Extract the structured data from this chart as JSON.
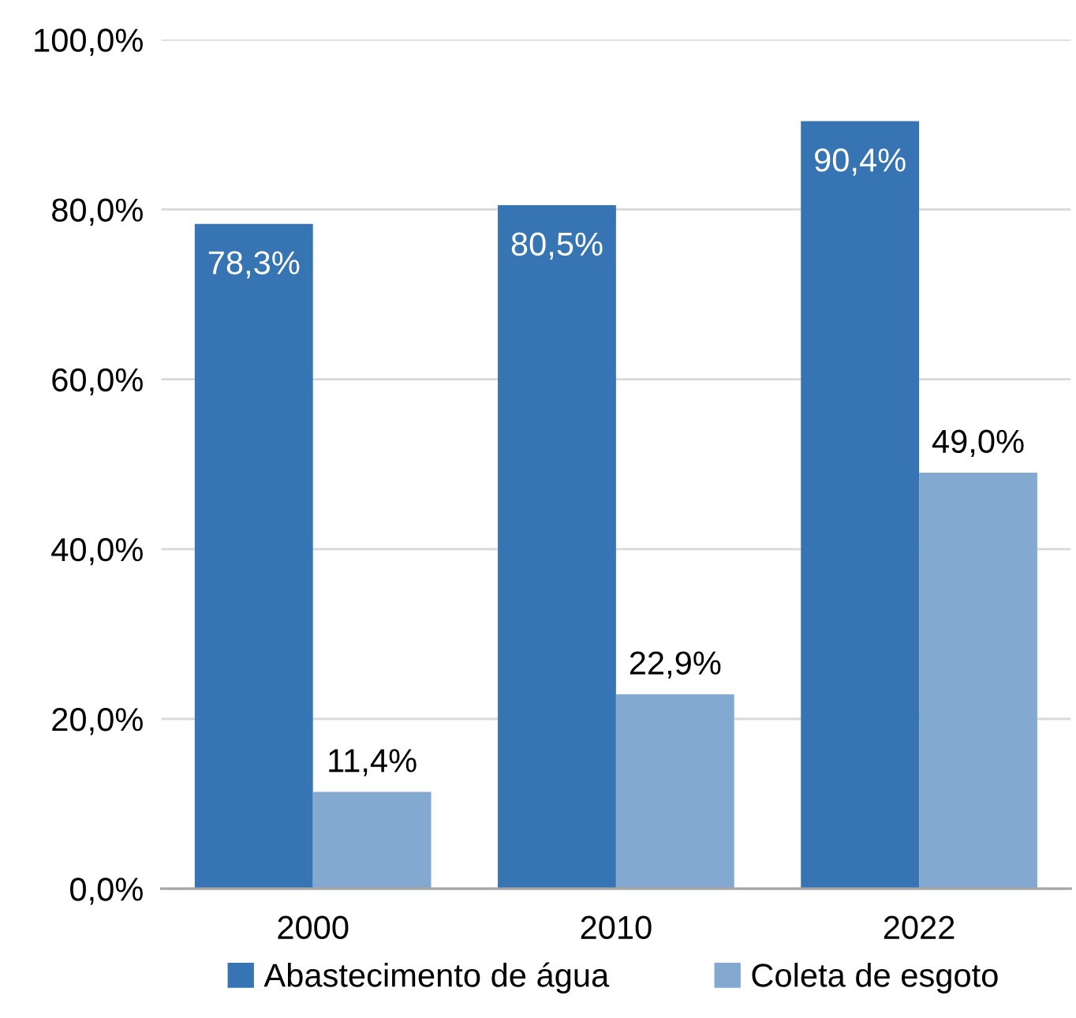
{
  "chart_data": {
    "type": "bar",
    "categories": [
      "2000",
      "2010",
      "2022"
    ],
    "series": [
      {
        "name": "Abastecimento de água",
        "color": "#3674b3",
        "values": [
          78.3,
          80.5,
          90.4
        ],
        "value_labels": [
          "78,3%",
          "80,5%",
          "90,4%"
        ]
      },
      {
        "name": "Coleta de esgoto",
        "color": "#83a9d0",
        "values": [
          11.4,
          22.9,
          49.0
        ],
        "value_labels": [
          "11,4%",
          "22,9%",
          "49,0%"
        ]
      }
    ],
    "ylim": [
      0,
      100
    ],
    "yticks": [
      {
        "value": 0,
        "label": "0,0%"
      },
      {
        "value": 20,
        "label": "20,0%"
      },
      {
        "value": 40,
        "label": "40,0%"
      },
      {
        "value": 60,
        "label": "60,0%"
      },
      {
        "value": 80,
        "label": "80,0%"
      },
      {
        "value": 100,
        "label": "100,0%"
      }
    ],
    "grid": "y",
    "legend": "bottom"
  }
}
